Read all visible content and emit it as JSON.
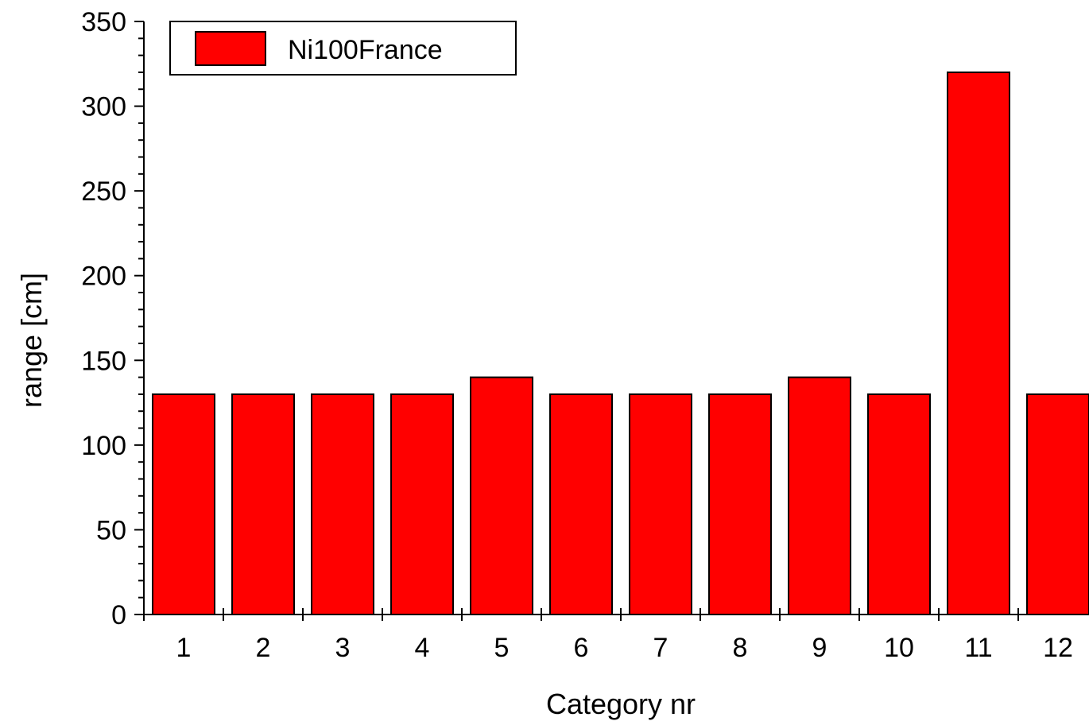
{
  "chart_data": {
    "type": "bar",
    "title": "",
    "xlabel": "Category nr",
    "ylabel": "range [cm]",
    "categories": [
      "1",
      "2",
      "3",
      "4",
      "5",
      "6",
      "7",
      "8",
      "9",
      "10",
      "11",
      "12"
    ],
    "series": [
      {
        "name": "Ni100France",
        "color": "#ff0000",
        "values": [
          130,
          130,
          130,
          130,
          140,
          130,
          130,
          130,
          140,
          130,
          320,
          130
        ]
      }
    ],
    "ylim": [
      0,
      350
    ],
    "yticks": [
      "0",
      "50",
      "100",
      "150",
      "200",
      "250",
      "300",
      "350"
    ],
    "grid": false,
    "legend_position": "top-left"
  }
}
